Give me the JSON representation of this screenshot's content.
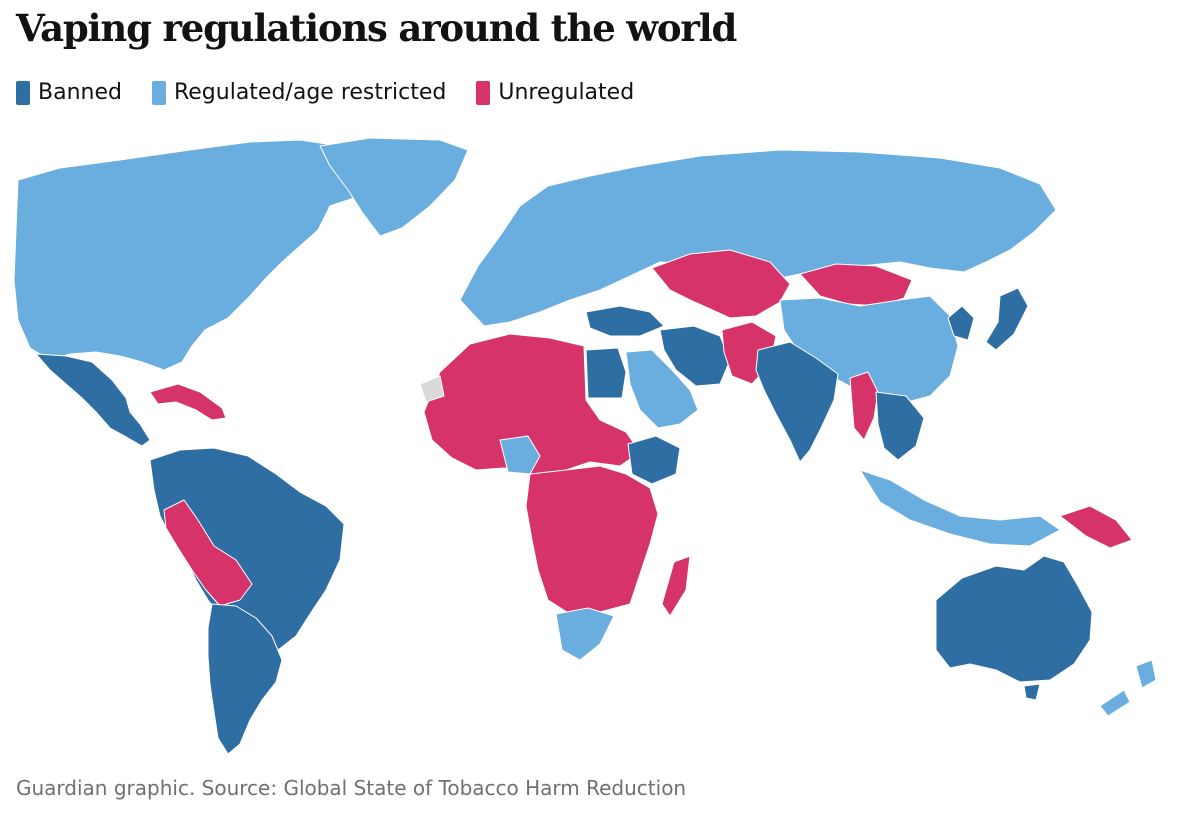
{
  "title": "Vaping regulations around the world",
  "legend": [
    {
      "label": "Banned",
      "color": "#2f6ea3"
    },
    {
      "label": "Regulated/age restricted",
      "color": "#6aaedf"
    },
    {
      "label": "Unregulated",
      "color": "#d6336b"
    }
  ],
  "no_data_color": "#d9d9d9",
  "source": "Guardian graphic. Source: Global State of Tobacco Harm Reduction"
}
